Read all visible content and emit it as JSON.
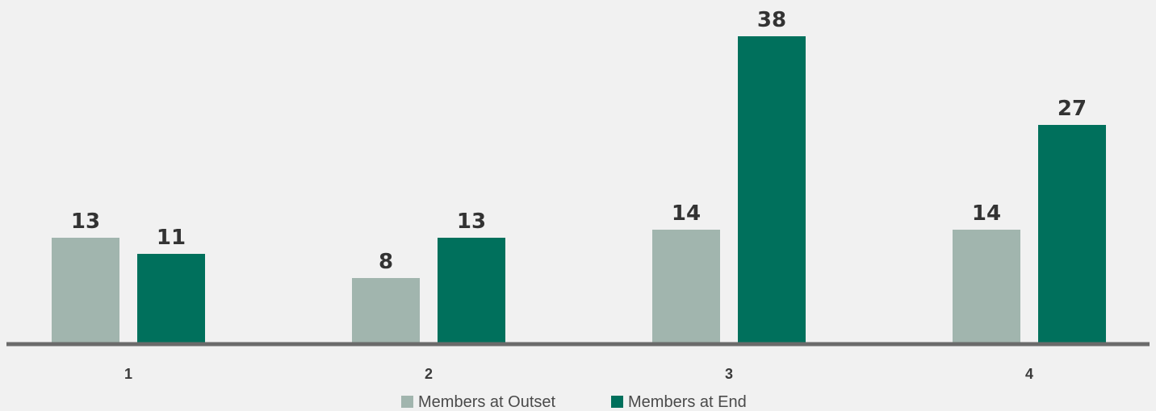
{
  "chart_data": {
    "type": "bar",
    "categories": [
      "1",
      "2",
      "3",
      "4"
    ],
    "series": [
      {
        "name": "Members at Outset",
        "values": [
          13,
          8,
          14,
          14
        ],
        "color": "#a1b5ae"
      },
      {
        "name": "Members at End",
        "values": [
          11,
          13,
          38,
          27
        ],
        "color": "#00705c"
      }
    ],
    "title": "",
    "xlabel": "",
    "ylabel": "",
    "ylim": [
      0,
      41
    ],
    "grid": false,
    "legend_position": "bottom-center",
    "axis_color": "#6b6b6b",
    "label_color": "#333333"
  }
}
